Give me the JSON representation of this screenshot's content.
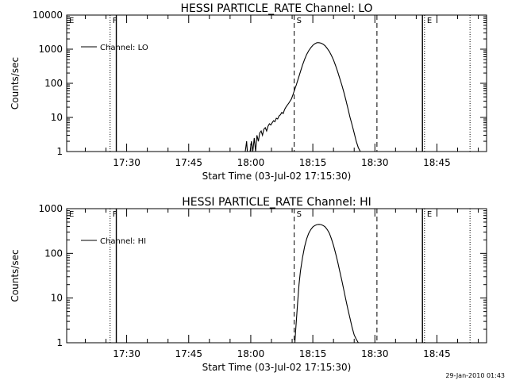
{
  "footer": {
    "timestamp": "29-Jan-2010 01:43"
  },
  "chart_data": [
    {
      "type": "line",
      "title": "HESSI PARTICLE_RATE Channel: LO",
      "xlabel": "Start Time (03-Jul-02 17:15:30)",
      "ylabel": "Counts/sec",
      "y_scale": "log",
      "xlim": [
        "17:15:30",
        "18:57:00"
      ],
      "ylim": [
        1,
        10000
      ],
      "x_ticks": [
        "17:30",
        "17:45",
        "18:00",
        "18:15",
        "18:30",
        "18:45"
      ],
      "y_ticks": [
        "1",
        "10",
        "100",
        "1000",
        "10000"
      ],
      "legend": {
        "position": "top-left",
        "entries": [
          "Channel: LO"
        ]
      },
      "markers": [
        {
          "label": "E",
          "time": "17:15:30",
          "style": "none"
        },
        {
          "label": "F",
          "time": "17:26:00",
          "style": "dotted"
        },
        {
          "label": "",
          "time": "17:27:30",
          "style": "solid"
        },
        {
          "label": "S",
          "time": "18:10:30",
          "style": "dashed"
        },
        {
          "label": "",
          "time": "18:30:30",
          "style": "dashed"
        },
        {
          "label": "",
          "time": "18:41:30",
          "style": "solid"
        },
        {
          "label": "E",
          "time": "18:42:00",
          "style": "dotted"
        },
        {
          "label": "",
          "time": "18:53:00",
          "style": "dotted"
        }
      ],
      "series": [
        {
          "name": "Channel: LO",
          "x": [
            "17:58:40",
            "17:59:00",
            "17:59:10",
            "17:59:30",
            "17:59:50",
            "18:00:10",
            "18:00:30",
            "18:00:50",
            "18:01:10",
            "18:01:30",
            "18:01:50",
            "18:02:10",
            "18:02:30",
            "18:02:50",
            "18:03:10",
            "18:03:30",
            "18:03:50",
            "18:04:10",
            "18:04:30",
            "18:04:50",
            "18:05:10",
            "18:05:30",
            "18:05:50",
            "18:06:10",
            "18:06:30",
            "18:06:50",
            "18:07:10",
            "18:07:30",
            "18:07:50",
            "18:08:10",
            "18:08:30",
            "18:08:50",
            "18:09:10",
            "18:09:30",
            "18:09:50",
            "18:10:10",
            "18:10:30",
            "18:11:00",
            "18:11:30",
            "18:12:00",
            "18:12:30",
            "18:13:00",
            "18:13:30",
            "18:14:00",
            "18:14:30",
            "18:15:00",
            "18:15:30",
            "18:16:00",
            "18:16:30",
            "18:17:00",
            "18:17:30",
            "18:18:00",
            "18:18:30",
            "18:19:00",
            "18:19:30",
            "18:20:00",
            "18:20:30",
            "18:21:00",
            "18:21:30",
            "18:22:00",
            "18:22:30",
            "18:23:00",
            "18:23:30",
            "18:24:00",
            "18:24:30",
            "18:25:00",
            "18:25:30",
            "18:26:00",
            "18:26:30",
            "18:27:00"
          ],
          "values": [
            1,
            2,
            1,
            1,
            1,
            2,
            1,
            2.5,
            1,
            3,
            2,
            3.5,
            4,
            3,
            4.5,
            5,
            4,
            5.5,
            6.5,
            6,
            7,
            8,
            7.5,
            9.5,
            9,
            11,
            12,
            14,
            13,
            17,
            20,
            23,
            26,
            30,
            35,
            45,
            60,
            90,
            140,
            220,
            340,
            500,
            700,
            900,
            1100,
            1300,
            1450,
            1550,
            1550,
            1500,
            1400,
            1250,
            1050,
            850,
            650,
            480,
            330,
            220,
            140,
            90,
            55,
            32,
            18,
            10,
            6,
            3.5,
            2,
            1.3,
            1,
            1
          ]
        }
      ]
    },
    {
      "type": "line",
      "title": "HESSI PARTICLE_RATE Channel: HI",
      "xlabel": "Start Time (03-Jul-02 17:15:30)",
      "ylabel": "Counts/sec",
      "y_scale": "log",
      "xlim": [
        "17:15:30",
        "18:57:00"
      ],
      "ylim": [
        1,
        1000
      ],
      "x_ticks": [
        "17:30",
        "17:45",
        "18:00",
        "18:15",
        "18:30",
        "18:45"
      ],
      "y_ticks": [
        "1",
        "10",
        "100",
        "1000"
      ],
      "legend": {
        "position": "top-left",
        "entries": [
          "Channel: HI"
        ]
      },
      "markers": [
        {
          "label": "E",
          "time": "17:15:30",
          "style": "none"
        },
        {
          "label": "F",
          "time": "17:26:00",
          "style": "dotted"
        },
        {
          "label": "",
          "time": "17:27:30",
          "style": "solid"
        },
        {
          "label": "S",
          "time": "18:10:30",
          "style": "dashed"
        },
        {
          "label": "",
          "time": "18:30:30",
          "style": "dashed"
        },
        {
          "label": "",
          "time": "18:41:30",
          "style": "solid"
        },
        {
          "label": "E",
          "time": "18:42:00",
          "style": "dotted"
        },
        {
          "label": "",
          "time": "18:53:00",
          "style": "dotted"
        }
      ],
      "series": [
        {
          "name": "Channel: HI",
          "x": [
            "18:10:40",
            "18:10:50",
            "18:11:00",
            "18:11:20",
            "18:11:40",
            "18:12:00",
            "18:12:30",
            "18:13:00",
            "18:13:30",
            "18:14:00",
            "18:14:30",
            "18:15:00",
            "18:15:30",
            "18:16:00",
            "18:16:30",
            "18:17:00",
            "18:17:30",
            "18:18:00",
            "18:18:30",
            "18:19:00",
            "18:19:30",
            "18:20:00",
            "18:20:30",
            "18:21:00",
            "18:21:30",
            "18:22:00",
            "18:22:30",
            "18:23:00",
            "18:23:30",
            "18:24:00",
            "18:24:30",
            "18:25:00",
            "18:25:30",
            "18:26:00",
            "18:26:30"
          ],
          "values": [
            1,
            1.8,
            3,
            8,
            20,
            40,
            80,
            140,
            210,
            280,
            340,
            390,
            420,
            440,
            445,
            440,
            420,
            390,
            340,
            280,
            210,
            150,
            100,
            65,
            40,
            25,
            15,
            9,
            5.5,
            3.5,
            2.2,
            1.5,
            1.2,
            1,
            1
          ]
        }
      ]
    }
  ]
}
